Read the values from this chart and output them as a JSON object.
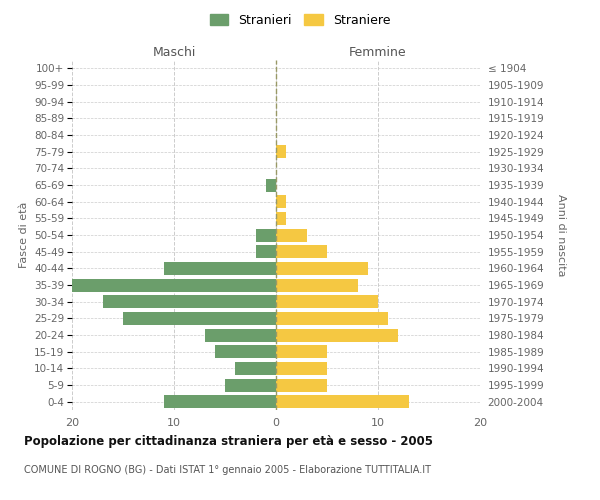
{
  "age_groups": [
    "0-4",
    "5-9",
    "10-14",
    "15-19",
    "20-24",
    "25-29",
    "30-34",
    "35-39",
    "40-44",
    "45-49",
    "50-54",
    "55-59",
    "60-64",
    "65-69",
    "70-74",
    "75-79",
    "80-84",
    "85-89",
    "90-94",
    "95-99",
    "100+"
  ],
  "birth_years": [
    "2000-2004",
    "1995-1999",
    "1990-1994",
    "1985-1989",
    "1980-1984",
    "1975-1979",
    "1970-1974",
    "1965-1969",
    "1960-1964",
    "1955-1959",
    "1950-1954",
    "1945-1949",
    "1940-1944",
    "1935-1939",
    "1930-1934",
    "1925-1929",
    "1920-1924",
    "1915-1919",
    "1910-1914",
    "1905-1909",
    "≤ 1904"
  ],
  "maschi": [
    11,
    5,
    4,
    6,
    7,
    15,
    17,
    20,
    11,
    2,
    2,
    0,
    0,
    1,
    0,
    0,
    0,
    0,
    0,
    0,
    0
  ],
  "femmine": [
    13,
    5,
    5,
    5,
    12,
    11,
    10,
    8,
    9,
    5,
    3,
    1,
    1,
    0,
    0,
    1,
    0,
    0,
    0,
    0,
    0
  ],
  "color_maschi": "#6b9e6b",
  "color_femmine": "#f5c842",
  "title": "Popolazione per cittadinanza straniera per età e sesso - 2005",
  "subtitle": "COMUNE DI ROGNO (BG) - Dati ISTAT 1° gennaio 2005 - Elaborazione TUTTITALIA.IT",
  "label_maschi": "Maschi",
  "label_femmine": "Femmine",
  "ylabel_left": "Fasce di età",
  "ylabel_right": "Anni di nascita",
  "legend_maschi": "Stranieri",
  "legend_femmine": "Straniere",
  "xlim": 20,
  "background_color": "#ffffff",
  "grid_color": "#cccccc"
}
